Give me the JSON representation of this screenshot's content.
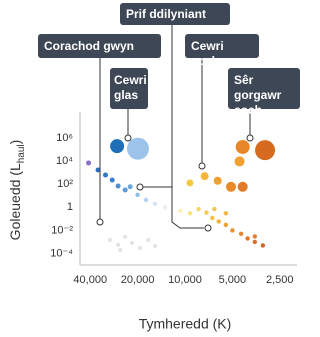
{
  "chart_data": {
    "type": "scatter",
    "xlabel": "Tymheredd (K)",
    "ylabel": {
      "text": "Goleuedd (L",
      "subscript": "haul",
      "close": ")"
    },
    "xscale": "log",
    "yscale": "log",
    "xlim": [
      50000,
      2000
    ],
    "xticks": [
      {
        "value": 40000,
        "label": "40,000"
      },
      {
        "value": 20000,
        "label": "20,000"
      },
      {
        "value": 10000,
        "label": "10,000"
      },
      {
        "value": 5000,
        "label": "5,000"
      },
      {
        "value": 2500,
        "label": "2,500"
      }
    ],
    "ylim": [
      1e-05,
      100000000
    ],
    "yticks": [
      {
        "value": 1000000,
        "label": "10⁶"
      },
      {
        "value": 10000,
        "label": "10⁴"
      },
      {
        "value": 100,
        "label": "10²"
      },
      1,
      {
        "value": 0.01,
        "label": "10⁻²"
      },
      {
        "value": 0.0001,
        "label": "10⁻⁴"
      }
    ],
    "grid": false,
    "annotations": [
      {
        "text": "Prif ddilyniant"
      },
      {
        "text": "Corachod gwyn"
      },
      {
        "text": "Cewri glas"
      },
      {
        "text": "Cewri coch"
      },
      {
        "text": "Sêr gorgawr coch"
      }
    ],
    "series": [
      {
        "x": [
          41000,
          35700,
          32000,
          29000,
          26600,
          24000,
          22300,
          20000,
          17700,
          15500,
          13400,
          10700,
          9300,
          8200,
          7300,
          6700,
          6100,
          5500,
          5000,
          4400,
          4000,
          3600,
          3200,
          3600,
          5500,
          6500
        ],
        "y": [
          7000,
          1700,
          630,
          230,
          70,
          32,
          60,
          12,
          4.4,
          2,
          1,
          0.5,
          0.3,
          0.7,
          0.35,
          0.12,
          0.06,
          0.03,
          0.01,
          0.005,
          0.002,
          0.001,
          0.0005,
          0.003,
          0.3,
          0.7
        ],
        "sizes": [
          2.5,
          2.5,
          2.5,
          2.5,
          2.5,
          2.5,
          2.5,
          2.2,
          2.2,
          2.2,
          2.2,
          2.2,
          2.2,
          2.2,
          2.2,
          2.2,
          2.2,
          2.2,
          2.2,
          2.2,
          2.2,
          2.2,
          2.2,
          2.2,
          2.2,
          2.2
        ],
        "colors": [
          "#8a6fc8",
          "#2f6fbd",
          "#2f78c4",
          "#3a83cc",
          "#4a90d2",
          "#5a9ad6",
          "#6aa6dc",
          "#8fbde6",
          "#b3d2ee",
          "#d6e5f3",
          "#eef0e8",
          "#fbf0b8",
          "#f8e27a",
          "#f6d860",
          "#f4cc50",
          "#f2be45",
          "#f0b03e",
          "#eda038",
          "#ea9233",
          "#e5852e",
          "#e0782a",
          "#da6c26",
          "#d46224",
          "#e08030",
          "#f1b845",
          "#f4c650"
        ]
      },
      {
        "x": [
          9300,
          7500,
          6200,
          5100,
          4300,
          4500
        ],
        "y": [
          130,
          500,
          200,
          60,
          60,
          9500
        ],
        "sizes": [
          3.5,
          4,
          4,
          5,
          5,
          5
        ],
        "colors": [
          "#f5c842",
          "#f3b63a",
          "#eea030",
          "#e8892a",
          "#e07a28",
          "#f0a030"
        ]
      },
      {
        "x": [
          27000,
          19900,
          4300,
          3100
        ],
        "y": [
          200000,
          120000,
          170000,
          90000
        ],
        "sizes": [
          7,
          11,
          7,
          10
        ],
        "colors": [
          "#1f6fb8",
          "#9cc4ea",
          "#e8862a",
          "#d66a1e"
        ]
      },
      {
        "x": [
          30000,
          26600,
          24000,
          21700,
          19300,
          17100,
          15500,
          25800
        ],
        "y": [
          0.0015,
          0.00055,
          0.0028,
          0.0008,
          0.0003,
          0.0015,
          0.00045,
          0.0002
        ],
        "sizes": [
          2,
          2,
          2,
          2,
          2,
          2,
          2,
          2
        ],
        "colors": [
          "#e2e2e2",
          "#e2e2e2",
          "#e2e2e2",
          "#e2e2e2",
          "#e2e2e2",
          "#e2e2e2",
          "#e2e2e2",
          "#e2e2e2"
        ]
      }
    ]
  }
}
